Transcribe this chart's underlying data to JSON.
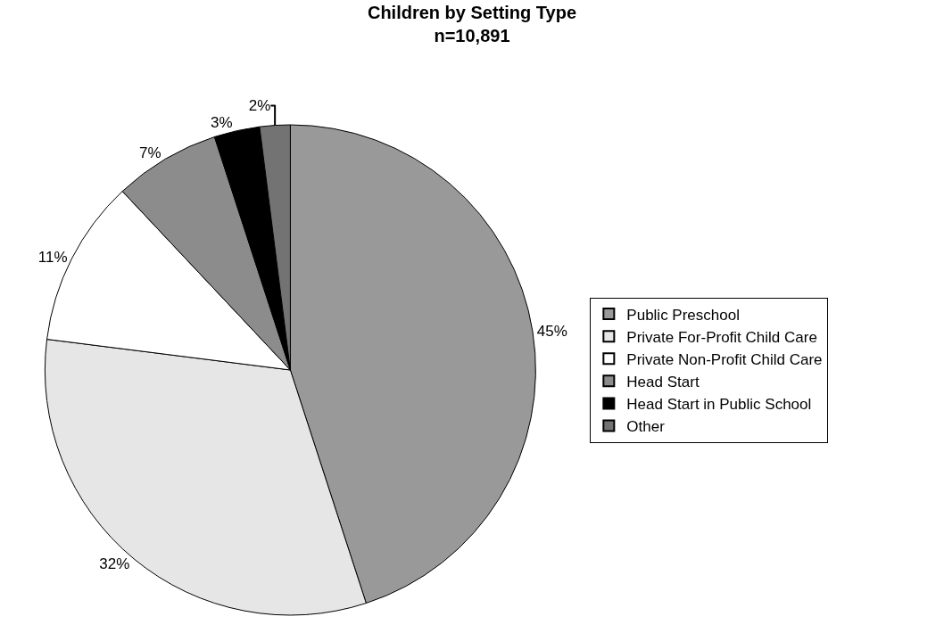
{
  "chart_data": {
    "type": "pie",
    "title": "Children by Setting Type",
    "subtitle": "n=10,891",
    "categories": [
      "Public Preschool",
      "Private For-Profit Child Care",
      "Private Non-Profit Child Care",
      "Head Start",
      "Head Start in Public School",
      "Other"
    ],
    "values": [
      45,
      32,
      11,
      7,
      3,
      2
    ],
    "value_labels": [
      "45%",
      "32%",
      "11%",
      "7%",
      "3%",
      "2%"
    ],
    "colors": [
      "#999999",
      "#e6e6e6",
      "#ffffff",
      "#8c8c8c",
      "#000000",
      "#737373"
    ],
    "legend": "right"
  }
}
